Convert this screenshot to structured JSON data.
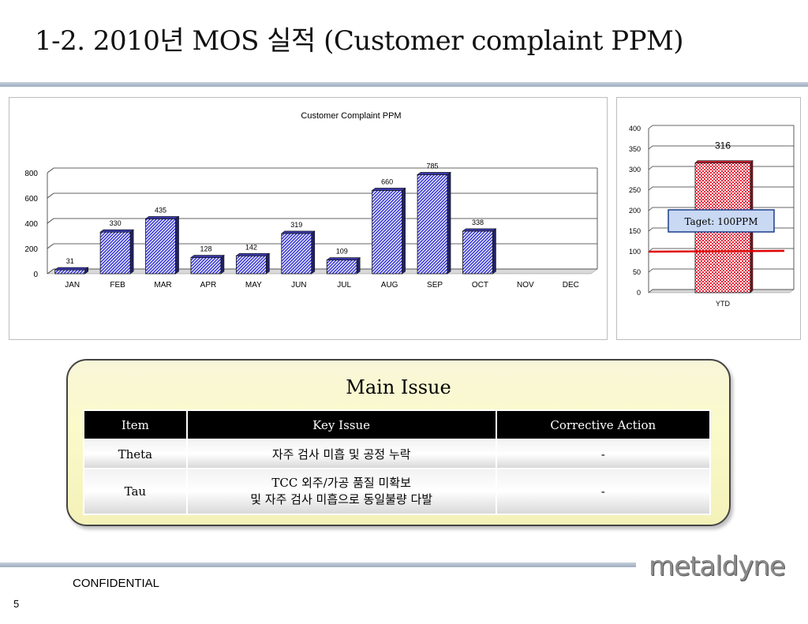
{
  "slide": {
    "title": "1-2. 2010년 MOS 실적 (Customer complaint PPM)",
    "confidential": "CONFIDENTIAL",
    "page_number": "5",
    "logo_text": "metaldyne"
  },
  "chart_data": [
    {
      "type": "bar",
      "title": "Customer Complaint PPM",
      "categories": [
        "JAN",
        "FEB",
        "MAR",
        "APR",
        "MAY",
        "JUN",
        "JUL",
        "AUG",
        "SEP",
        "OCT",
        "NOV",
        "DEC"
      ],
      "values": [
        31,
        330,
        435,
        128,
        142,
        319,
        109,
        660,
        785,
        338,
        null,
        null
      ],
      "ylim": [
        0,
        800
      ],
      "yticks": [
        0,
        200,
        400,
        600,
        800
      ],
      "grid": true,
      "bar_color": "#4a4adf"
    },
    {
      "type": "bar",
      "categories": [
        "YTD"
      ],
      "values": [
        316
      ],
      "ylim": [
        0,
        400
      ],
      "yticks": [
        0,
        50,
        100,
        150,
        200,
        250,
        300,
        350,
        400
      ],
      "grid": true,
      "bar_color": "#e8243a",
      "target": {
        "value": 100,
        "label": "Taget: 100PPM",
        "color": "#e00000"
      }
    }
  ],
  "main_issue": {
    "title": "Main Issue",
    "headers": {
      "item": "Item",
      "key_issue": "Key Issue",
      "action": "Corrective Action"
    },
    "rows": [
      {
        "item": "Theta",
        "key_issue_lines": [
          "자주 검사 미흡 및 공정 누락"
        ],
        "action": "-"
      },
      {
        "item": "Tau",
        "key_issue_lines": [
          "TCC 외주/가공 품질 미확보",
          "및 자주 검사 미흡으로 동일불량 다발"
        ],
        "action": "-"
      }
    ]
  }
}
